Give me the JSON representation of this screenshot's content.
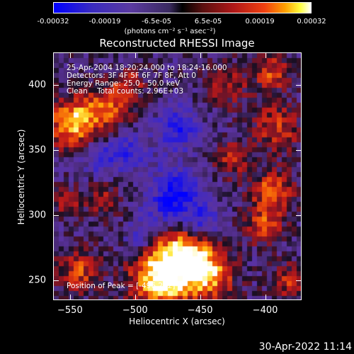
{
  "colorbar": {
    "ticks": [
      "-0.00032",
      "-0.00019",
      "-6.5e-05",
      "6.5e-05",
      "0.00019",
      "0.00032"
    ],
    "units": "(photons cm⁻² s⁻¹ asec⁻²)"
  },
  "plot": {
    "title": "Reconstructed RHESSI Image",
    "info_lines": [
      "25-Apr-2004 18:20:24.000 to 18:24:16.000",
      "Detectors: 3F 4F 5F 6F 7F 8F, Att 0",
      "Energy Range: 25.0 - 50.0 keV",
      "Clean    Total counts: 2.96E+03"
    ],
    "peak_text": "Position of Peak = [-496,232]",
    "xlabel": "Heliocentric X (arcsec)",
    "ylabel": "Heliocentric Y (arcsec)"
  },
  "chart_data": {
    "type": "heatmap",
    "title": "Reconstructed RHESSI Image",
    "xlabel": "Heliocentric X (arcsec)",
    "ylabel": "Heliocentric Y (arcsec)",
    "x_ticks": [
      -550,
      -500,
      -450,
      -400
    ],
    "y_ticks": [
      250,
      300,
      350,
      400
    ],
    "xlim": [
      -563,
      -372
    ],
    "ylim": [
      235,
      425
    ],
    "colorbar_range": [
      -0.00032,
      0.00032
    ]
  },
  "timestamp": "30-Apr-2022 11:14"
}
